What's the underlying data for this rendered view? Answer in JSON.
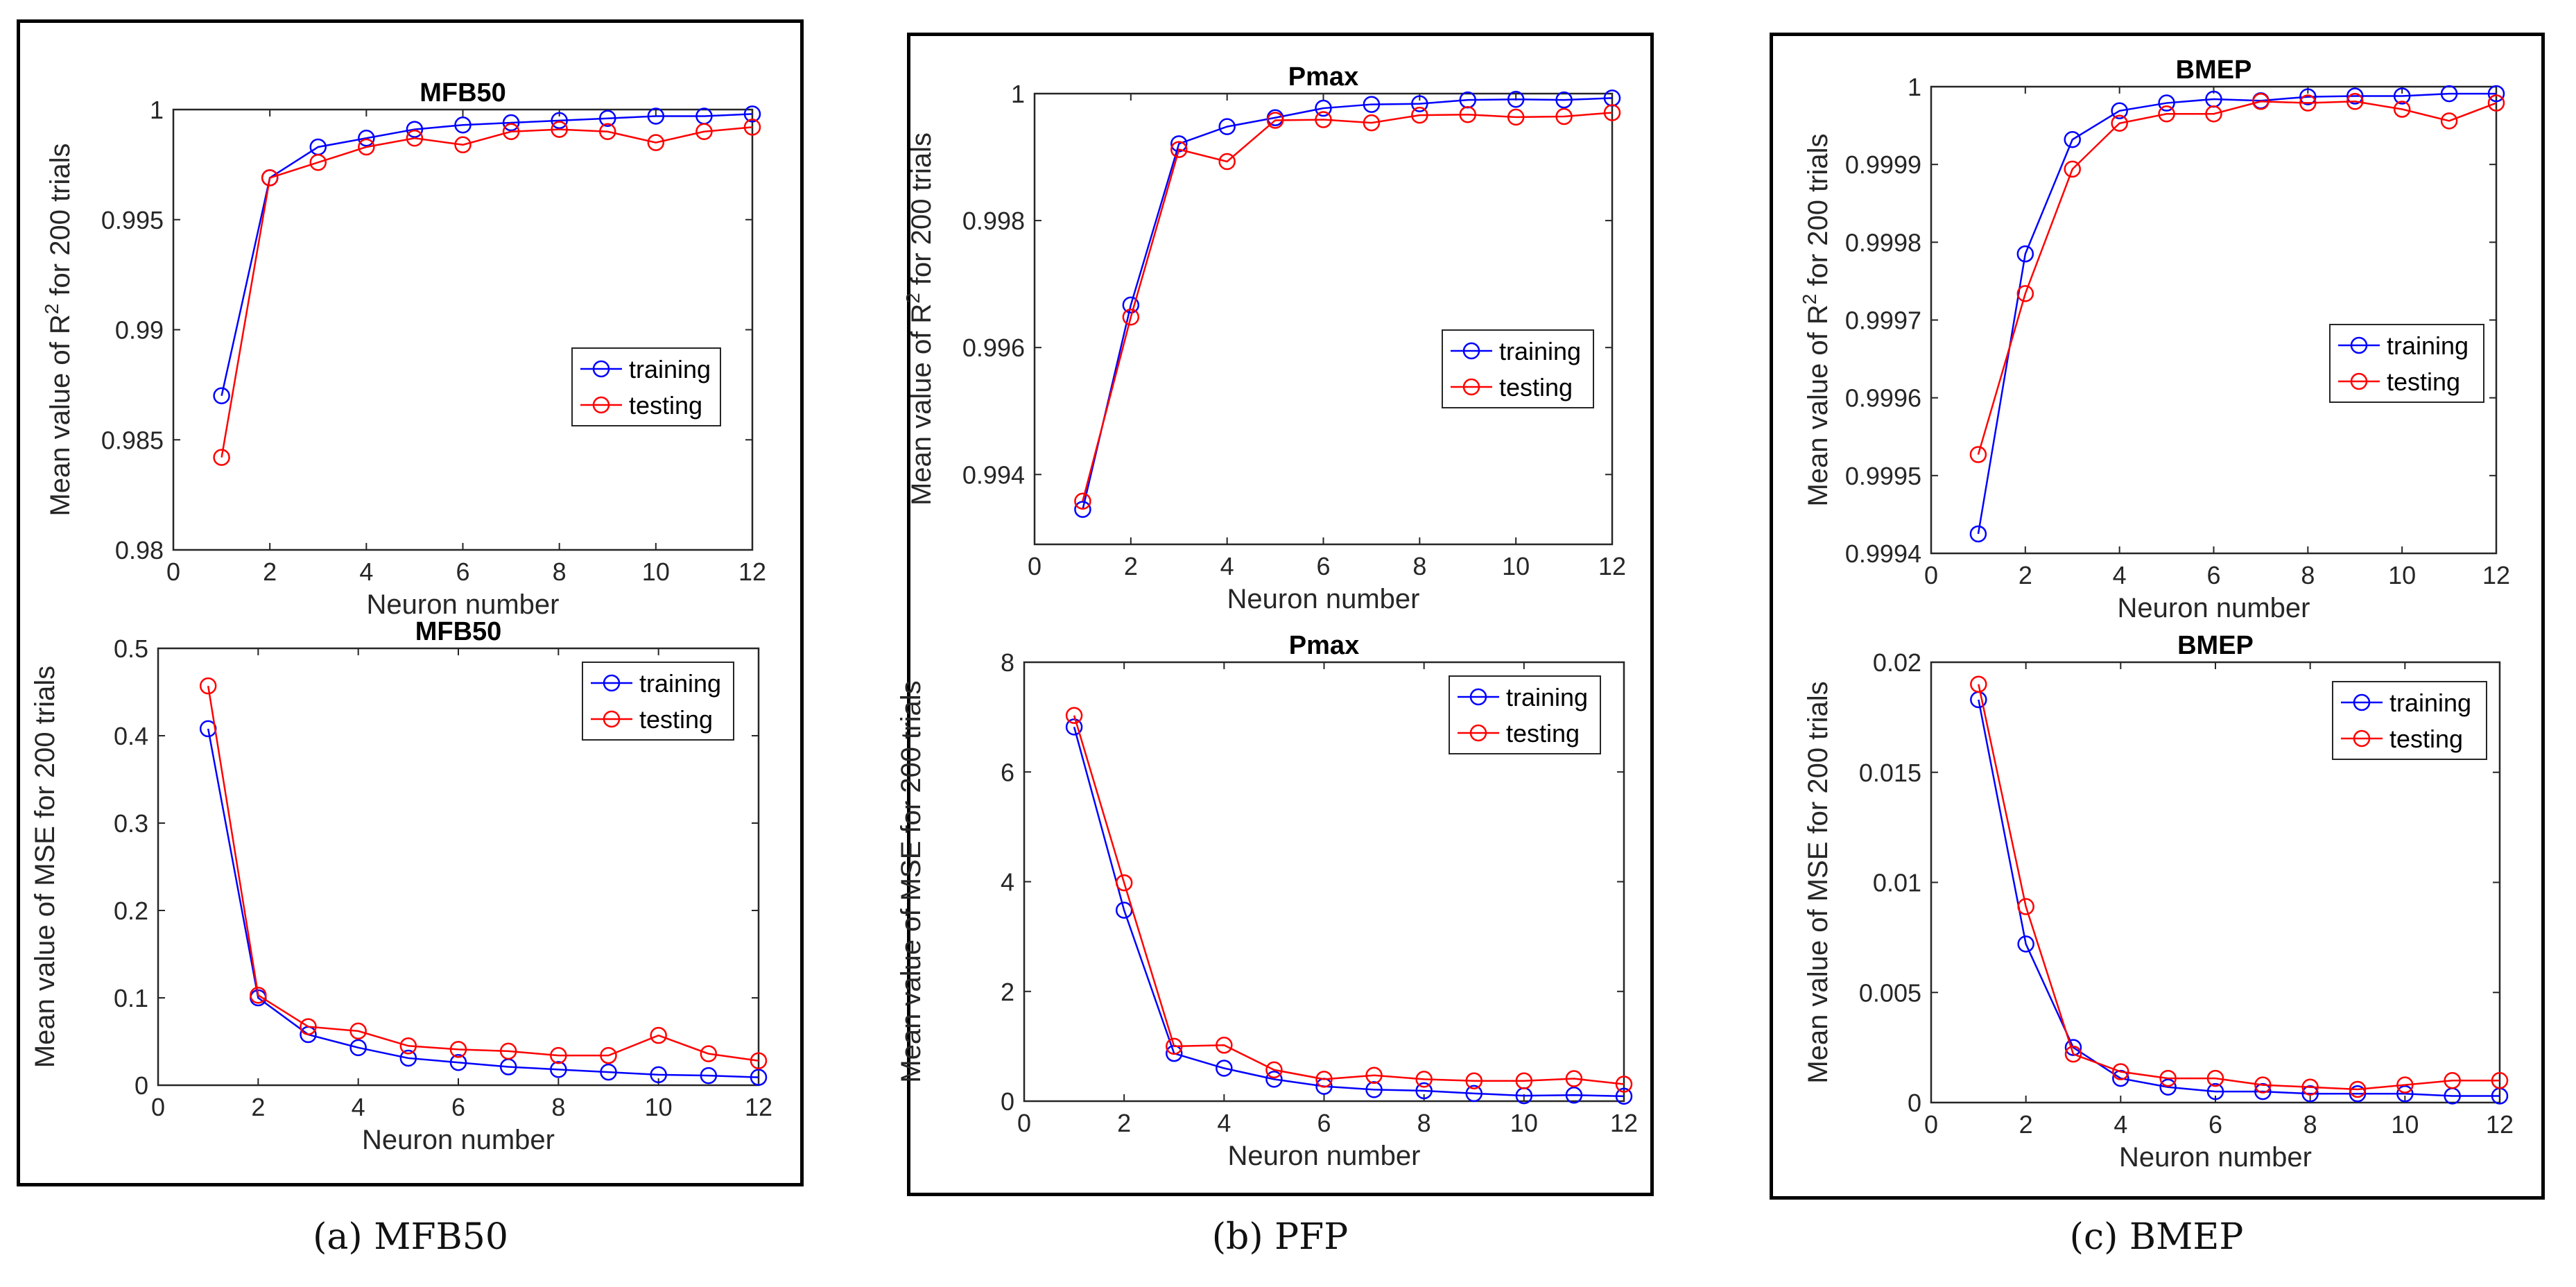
{
  "figure": {
    "captions": [
      "(a) MFB50",
      "(b) PFP",
      "(c) BMEP"
    ]
  },
  "legend": {
    "training": "training",
    "testing": "testing"
  },
  "colors": {
    "training": "#0000FF",
    "testing": "#FF0000"
  },
  "chart_data": [
    {
      "id": "mfb50-r2",
      "type": "line",
      "title": "MFB50",
      "xlabel": "Neuron number",
      "ylabel": "Mean value of R² for 200 trials",
      "ylabel_base": "Mean value of R",
      "ylabel_sup": "2",
      "ylabel_rest": " for 200 trials",
      "xlim": [
        0,
        12
      ],
      "ylim": [
        0.98,
        1
      ],
      "xticks": [
        0,
        2,
        4,
        6,
        8,
        10,
        12
      ],
      "xtick_labels": [
        "0",
        "2",
        "4",
        "6",
        "8",
        "10",
        "12"
      ],
      "yticks": [
        0.98,
        0.985,
        0.99,
        0.995,
        1
      ],
      "ytick_labels": [
        "0.98",
        "0.985",
        "0.99",
        "0.995",
        "1"
      ],
      "x": [
        1,
        2,
        3,
        4,
        5,
        6,
        7,
        8,
        9,
        10,
        11,
        12
      ],
      "series": [
        {
          "name": "training",
          "values": [
            0.987,
            0.9969,
            0.9983,
            0.9987,
            0.9991,
            0.9993,
            0.9994,
            0.9995,
            0.9996,
            0.9997,
            0.9997,
            0.9998
          ]
        },
        {
          "name": "testing",
          "values": [
            0.9842,
            0.9969,
            0.9976,
            0.9983,
            0.9987,
            0.9984,
            0.999,
            0.9991,
            0.999,
            0.9985,
            0.999,
            0.9992
          ]
        }
      ],
      "legend_pos": "right"
    },
    {
      "id": "mfb50-mse",
      "type": "line",
      "title": "MFB50",
      "xlabel": "Neuron number",
      "ylabel": "Mean value of MSE for 200 trials",
      "xlim": [
        0,
        12
      ],
      "ylim": [
        0,
        0.5
      ],
      "xticks": [
        0,
        2,
        4,
        6,
        8,
        10,
        12
      ],
      "xtick_labels": [
        "0",
        "2",
        "4",
        "6",
        "8",
        "10",
        "12"
      ],
      "yticks": [
        0,
        0.1,
        0.2,
        0.3,
        0.4,
        0.5
      ],
      "ytick_labels": [
        "0",
        "0.1",
        "0.2",
        "0.3",
        "0.4",
        "0.5"
      ],
      "x": [
        1,
        2,
        3,
        4,
        5,
        6,
        7,
        8,
        9,
        10,
        11,
        12
      ],
      "series": [
        {
          "name": "training",
          "values": [
            0.408,
            0.1,
            0.058,
            0.043,
            0.031,
            0.026,
            0.021,
            0.018,
            0.015,
            0.012,
            0.011,
            0.009
          ]
        },
        {
          "name": "testing",
          "values": [
            0.457,
            0.103,
            0.067,
            0.062,
            0.045,
            0.041,
            0.039,
            0.034,
            0.034,
            0.057,
            0.036,
            0.028
          ]
        }
      ],
      "legend_pos": "top-right"
    },
    {
      "id": "pmax-r2",
      "type": "line",
      "title": "Pmax",
      "xlabel": "Neuron number",
      "ylabel": "Mean value of R² for 200 trials",
      "ylabel_base": "Mean value of R",
      "ylabel_sup": "2",
      "ylabel_rest": " for 200 trials",
      "xlim": [
        0,
        12
      ],
      "ylim": [
        0.9929,
        1
      ],
      "xticks": [
        0,
        2,
        4,
        6,
        8,
        10,
        12
      ],
      "xtick_labels": [
        "0",
        "2",
        "4",
        "6",
        "8",
        "10",
        "12"
      ],
      "yticks": [
        0.994,
        0.996,
        0.998,
        1
      ],
      "ytick_labels": [
        "0.994",
        "0.996",
        "0.998",
        "1"
      ],
      "x": [
        1,
        2,
        3,
        4,
        5,
        6,
        7,
        8,
        9,
        10,
        11,
        12
      ],
      "series": [
        {
          "name": "training",
          "values": [
            0.99345,
            0.99667,
            0.99921,
            0.99948,
            0.99962,
            0.99977,
            0.99983,
            0.99984,
            0.9999,
            0.99991,
            0.9999,
            0.99993
          ]
        },
        {
          "name": "testing",
          "values": [
            0.99358,
            0.99648,
            0.99912,
            0.99893,
            0.99958,
            0.99959,
            0.99954,
            0.99966,
            0.99967,
            0.99963,
            0.99964,
            0.9997
          ]
        }
      ],
      "legend_pos": "right"
    },
    {
      "id": "pmax-mse",
      "type": "line",
      "title": "Pmax",
      "xlabel": "Neuron number",
      "ylabel": "Mean value of MSE for 200 trials",
      "xlim": [
        0,
        12
      ],
      "ylim": [
        0,
        8
      ],
      "xticks": [
        0,
        2,
        4,
        6,
        8,
        10,
        12
      ],
      "xtick_labels": [
        "0",
        "2",
        "4",
        "6",
        "8",
        "10",
        "12"
      ],
      "yticks": [
        0,
        2,
        4,
        6,
        8
      ],
      "ytick_labels": [
        "0",
        "2",
        "4",
        "6",
        "8"
      ],
      "x": [
        1,
        2,
        3,
        4,
        5,
        6,
        7,
        8,
        9,
        10,
        11,
        12
      ],
      "series": [
        {
          "name": "training",
          "values": [
            6.82,
            3.48,
            0.87,
            0.6,
            0.4,
            0.27,
            0.21,
            0.19,
            0.14,
            0.1,
            0.11,
            0.09
          ]
        },
        {
          "name": "testing",
          "values": [
            7.03,
            3.98,
            1.0,
            1.02,
            0.57,
            0.4,
            0.47,
            0.4,
            0.37,
            0.37,
            0.41,
            0.31
          ]
        }
      ],
      "legend_pos": "top-right"
    },
    {
      "id": "bmep-r2",
      "type": "line",
      "title": "BMEP",
      "xlabel": "Neuron number",
      "ylabel": "Mean value of R² for 200 trials",
      "ylabel_base": "Mean value of R",
      "ylabel_sup": "2",
      "ylabel_rest": " for 200 trials",
      "xlim": [
        0,
        12
      ],
      "ylim": [
        0.9994,
        1
      ],
      "xticks": [
        0,
        2,
        4,
        6,
        8,
        10,
        12
      ],
      "xtick_labels": [
        "0",
        "2",
        "4",
        "6",
        "8",
        "10",
        "12"
      ],
      "yticks": [
        0.9994,
        0.9995,
        0.9996,
        0.9997,
        0.9998,
        0.9999,
        1
      ],
      "ytick_labels": [
        "0.9994",
        "0.9995",
        "0.9996",
        "0.9997",
        "0.9998",
        "0.9999",
        "1"
      ],
      "x": [
        1,
        2,
        3,
        4,
        5,
        6,
        7,
        8,
        9,
        10,
        11,
        12
      ],
      "series": [
        {
          "name": "training",
          "values": [
            0.999425,
            0.999785,
            0.999932,
            0.999969,
            0.999979,
            0.999984,
            0.999982,
            0.999987,
            0.999988,
            0.999988,
            0.999991,
            0.999991
          ]
        },
        {
          "name": "testing",
          "values": [
            0.999527,
            0.999734,
            0.999894,
            0.999953,
            0.999965,
            0.999965,
            0.999981,
            0.999979,
            0.999981,
            0.999971,
            0.999956,
            0.999979
          ]
        }
      ],
      "legend_pos": "right"
    },
    {
      "id": "bmep-mse",
      "type": "line",
      "title": "BMEP",
      "xlabel": "Neuron number",
      "ylabel": "Mean value of MSE for 200 trials",
      "xlim": [
        0,
        12
      ],
      "ylim": [
        0,
        0.02
      ],
      "xticks": [
        0,
        2,
        4,
        6,
        8,
        10,
        12
      ],
      "xtick_labels": [
        "0",
        "2",
        "4",
        "6",
        "8",
        "10",
        "12"
      ],
      "yticks": [
        0,
        0.005,
        0.01,
        0.015,
        0.02
      ],
      "ytick_labels": [
        "0",
        "0.005",
        "0.01",
        "0.015",
        "0.02"
      ],
      "x": [
        1,
        2,
        3,
        4,
        5,
        6,
        7,
        8,
        9,
        10,
        11,
        12
      ],
      "series": [
        {
          "name": "training",
          "values": [
            0.0183,
            0.0072,
            0.0025,
            0.0011,
            0.0007,
            0.0005,
            0.0005,
            0.0004,
            0.0004,
            0.0004,
            0.0003,
            0.0003
          ]
        },
        {
          "name": "testing",
          "values": [
            0.019,
            0.0089,
            0.0022,
            0.0014,
            0.0011,
            0.0011,
            0.0008,
            0.0007,
            0.0006,
            0.0008,
            0.001,
            0.001
          ]
        }
      ],
      "legend_pos": "top-right"
    }
  ]
}
